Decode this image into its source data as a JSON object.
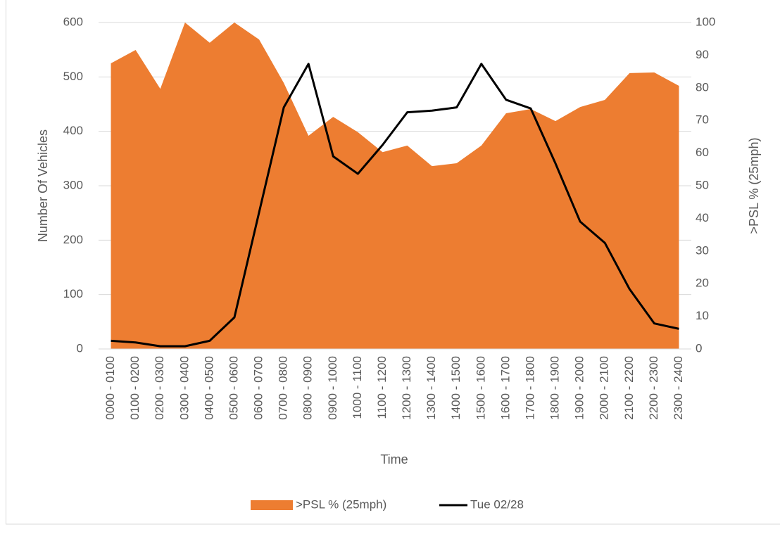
{
  "chart_data": {
    "type": "combo",
    "categories": [
      "0000 - 0100",
      "0100 - 0200",
      "0200 - 0300",
      "0300 - 0400",
      "0400 - 0500",
      "0500 - 0600",
      "0600 - 0700",
      "0700 - 0800",
      "0800 - 0900",
      "0900 - 1000",
      "1000 - 1100",
      "1100 - 1200",
      "1200 - 1300",
      "1300 - 1400",
      "1400 - 1500",
      "1500 - 1600",
      "1600 - 1700",
      "1700 - 1800",
      "1800 - 1900",
      "1900 - 2000",
      "2000 - 2100",
      "2100 - 2200",
      "2200 - 2300",
      "2300 - 2400"
    ],
    "x_label": "Time",
    "y_label": "Number Of Vehicles",
    "y2_label": ">PSL % (25mph)",
    "series": [
      {
        "name": ">PSL % (25mph)",
        "type": "area",
        "axis": "y2",
        "color": "#ed7d31",
        "values": [
          87.5,
          91.6,
          79.7,
          100,
          93.8,
          100,
          94.8,
          81.5,
          65.3,
          71.1,
          66.4,
          60.3,
          62.3,
          56,
          56.9,
          62.3,
          72.2,
          73.5,
          69.8,
          74.1,
          76.3,
          84.5,
          84.7,
          80.6
        ]
      },
      {
        "name": "Tue 02/28",
        "type": "line",
        "axis": "y",
        "color": "#000000",
        "values": [
          15,
          12,
          5,
          5,
          15,
          58,
          251,
          444,
          524,
          354,
          322,
          375,
          435,
          438,
          444,
          524,
          458,
          442,
          341,
          234,
          195,
          110,
          47,
          37
        ]
      }
    ],
    "ylim": [
      0,
      600
    ],
    "yticks": [
      0,
      100,
      200,
      300,
      400,
      500,
      600
    ],
    "y2lim": [
      0,
      100
    ],
    "y2ticks": [
      0,
      10,
      20,
      30,
      40,
      50,
      60,
      70,
      80,
      90,
      100
    ],
    "grid": true,
    "legend": "bottom"
  }
}
